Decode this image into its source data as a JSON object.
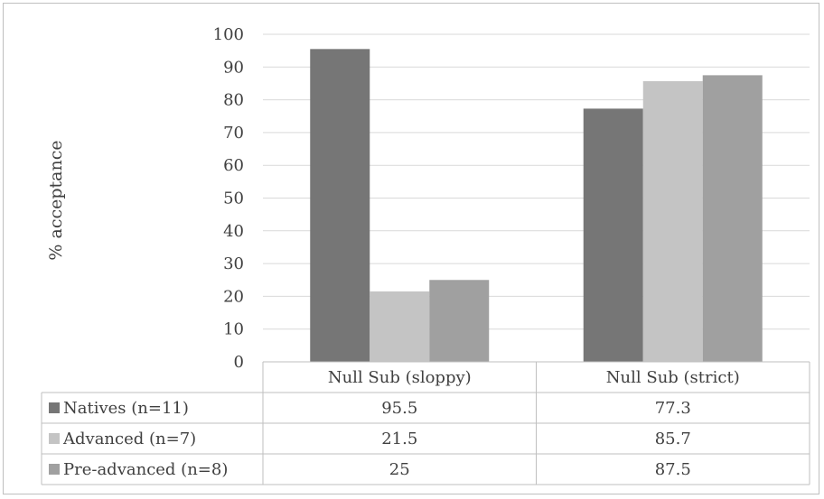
{
  "chart_data": {
    "type": "bar",
    "ylabel": "% acceptance",
    "ylim": [
      0,
      100
    ],
    "yticks": [
      0,
      10,
      20,
      30,
      40,
      50,
      60,
      70,
      80,
      90,
      100
    ],
    "grid": true,
    "categories": [
      "Null Sub (sloppy)",
      "Null Sub (strict)"
    ],
    "series": [
      {
        "name": "Natives (n=11)",
        "values": [
          95.5,
          77.3
        ],
        "color": "#767676"
      },
      {
        "name": "Advanced (n=7)",
        "values": [
          21.5,
          85.7
        ],
        "color": "#c4c4c4"
      },
      {
        "name": "Pre-advanced (n=8)",
        "values": [
          25,
          87.5
        ],
        "color": "#a0a0a0"
      }
    ],
    "data_table": {
      "rows": [
        [
          "95.5",
          "77.3"
        ],
        [
          "21.5",
          "85.7"
        ],
        [
          "25",
          "87.5"
        ]
      ]
    },
    "legend": "data-table"
  }
}
